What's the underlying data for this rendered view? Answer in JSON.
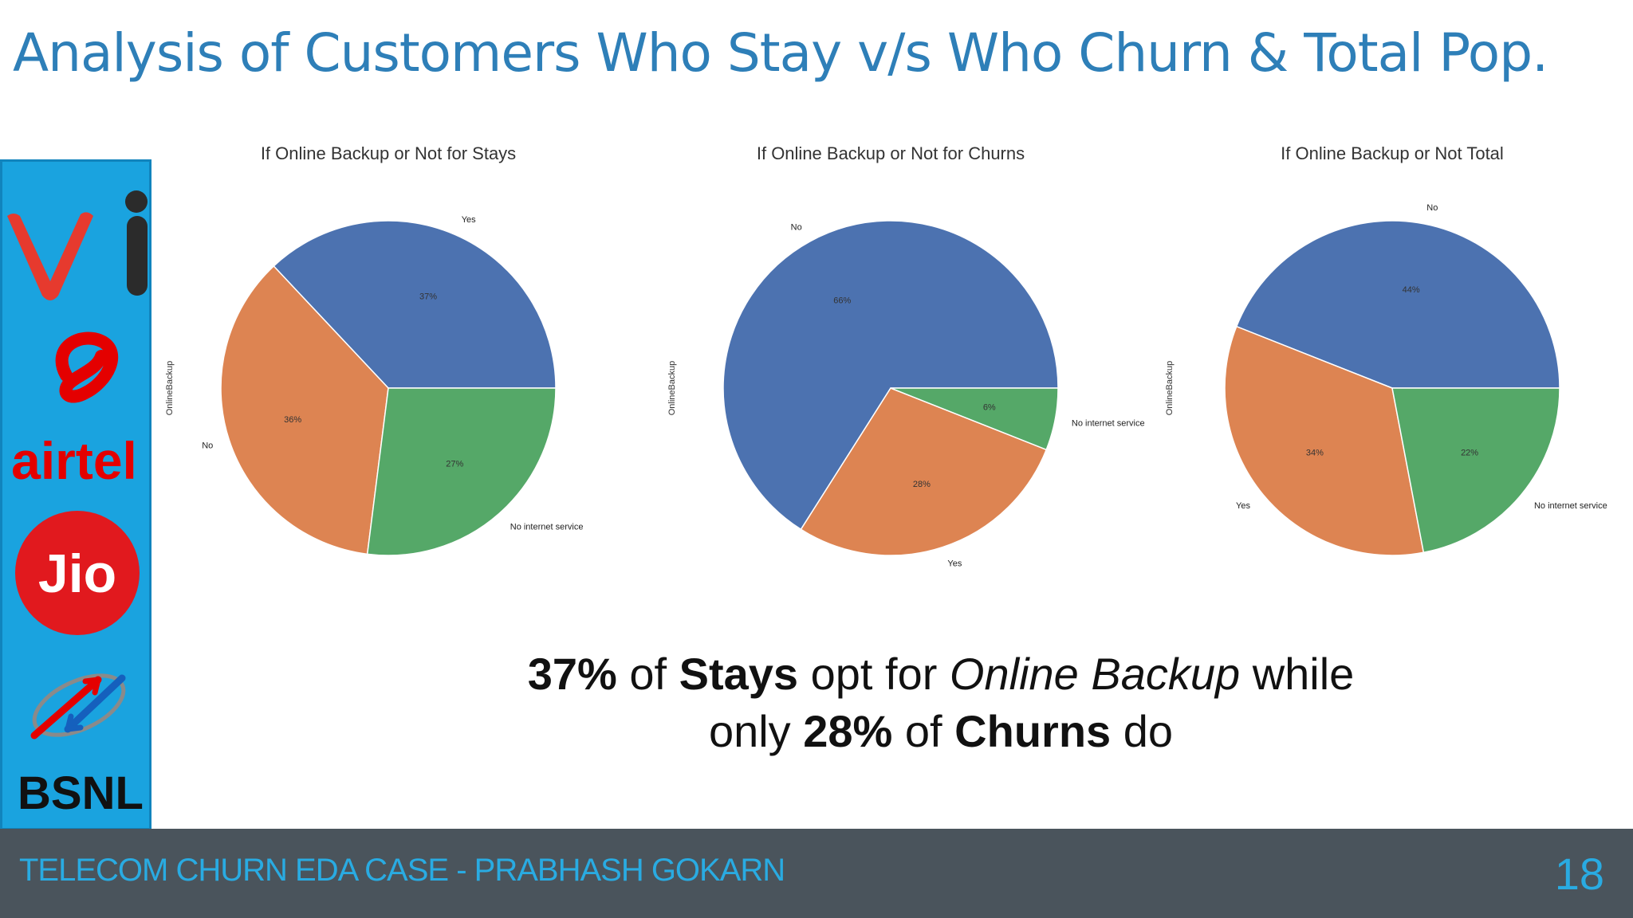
{
  "slide": {
    "title": "Analysis of Customers Who Stay v/s Who Churn & Total Pop.",
    "takeaway": {
      "line1": {
        "b1": "37%",
        "t1": " of ",
        "b2": "Stays",
        "t2": " opt for ",
        "i1": "Online Backup",
        "t3": " while"
      },
      "line2": {
        "t1": "only ",
        "b1": "28%",
        "t2": " of ",
        "b2": "Churns",
        "t3": " do"
      }
    },
    "footer": "TELECOM CHURN EDA CASE - PRABHASH GOKARN",
    "page_number": "18"
  },
  "logos": {
    "vi": "vi",
    "airtel": "airtel",
    "jio": "Jio",
    "bsnl": "BSNL"
  },
  "colors": {
    "accent": "#2e7fb8",
    "strip": "#1aa3df",
    "footer_bg": "#4a545c",
    "footer_text": "#29abe2",
    "pie_blue": "#4c72b0",
    "pie_orange": "#dd8452",
    "pie_green": "#55a868"
  },
  "chart_data": [
    {
      "type": "pie",
      "title": "If Online Backup or Not for Stays",
      "ylabel": "OnlineBackup",
      "categories": [
        "Yes",
        "No",
        "No internet service"
      ],
      "values": [
        37,
        36,
        27
      ],
      "pct_labels": [
        "37%",
        "36%",
        "27%"
      ],
      "colors": [
        "#4c72b0",
        "#dd8452",
        "#55a868"
      ],
      "start_angle_deg": 0
    },
    {
      "type": "pie",
      "title": "If Online Backup or Not for Churns",
      "ylabel": "OnlineBackup",
      "categories": [
        "No",
        "Yes",
        "No internet service"
      ],
      "values": [
        66,
        28,
        6
      ],
      "pct_labels": [
        "66%",
        "28%",
        "6%"
      ],
      "colors": [
        "#4c72b0",
        "#dd8452",
        "#55a868"
      ],
      "start_angle_deg": 0
    },
    {
      "type": "pie",
      "title": "If Online Backup or Not Total",
      "ylabel": "OnlineBackup",
      "categories": [
        "No",
        "Yes",
        "No internet service"
      ],
      "values": [
        44,
        34,
        22
      ],
      "pct_labels": [
        "44%",
        "34%",
        "22%"
      ],
      "colors": [
        "#4c72b0",
        "#dd8452",
        "#55a868"
      ],
      "start_angle_deg": 0
    }
  ]
}
